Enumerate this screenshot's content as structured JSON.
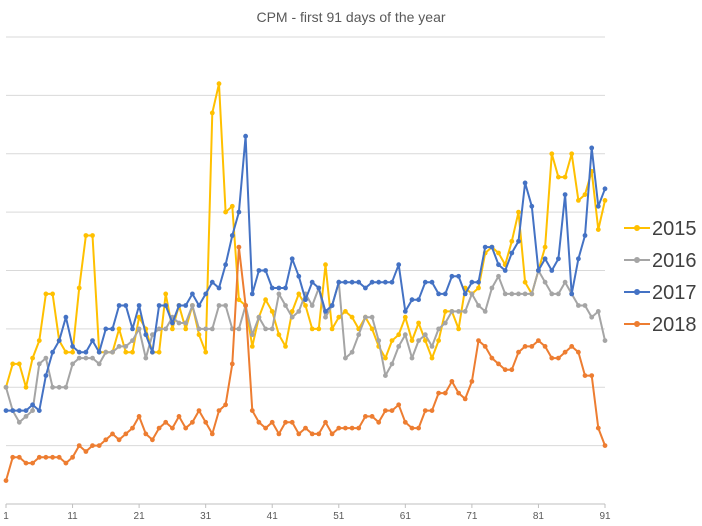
{
  "chart_data": {
    "type": "line",
    "title": "CPM - first 91 days of the year",
    "xlabel": "",
    "ylabel": "",
    "xlim": [
      1,
      91
    ],
    "ylim": [
      0,
      8
    ],
    "y_tick_labels_shown": false,
    "grid": "horizontal",
    "legend_position": "right",
    "x_ticks": [
      1,
      11,
      21,
      31,
      41,
      51,
      61,
      71,
      81,
      91
    ],
    "series": [
      {
        "name": "2015",
        "color": "#FFC000",
        "x": [
          1,
          2,
          3,
          4,
          5,
          6,
          7,
          8,
          9,
          10,
          11,
          12,
          13,
          14,
          15,
          16,
          17,
          18,
          19,
          20,
          21,
          22,
          23,
          24,
          25,
          26,
          27,
          28,
          29,
          30,
          31,
          32,
          33,
          34,
          35,
          36,
          37,
          38,
          39,
          40,
          41,
          42,
          43,
          44,
          45,
          46,
          47,
          48,
          49,
          50,
          51,
          52,
          53,
          54,
          55,
          56,
          57,
          58,
          59,
          60,
          61,
          62,
          63,
          64,
          65,
          66,
          67,
          68,
          69,
          70,
          71,
          72,
          73,
          74,
          75,
          76,
          77,
          78,
          79,
          80,
          81,
          82,
          83,
          84,
          85,
          86,
          87,
          88,
          89,
          90,
          91
        ],
        "values": [
          2.0,
          2.4,
          2.4,
          2.0,
          2.5,
          2.8,
          3.6,
          3.6,
          2.8,
          2.6,
          2.6,
          3.7,
          4.6,
          4.6,
          2.6,
          2.6,
          2.6,
          3.0,
          2.6,
          2.6,
          3.2,
          3.0,
          2.6,
          2.6,
          3.6,
          3.0,
          3.4,
          3.0,
          3.4,
          2.9,
          2.6,
          6.7,
          7.2,
          5.0,
          5.1,
          3.5,
          3.4,
          2.7,
          3.2,
          3.5,
          3.3,
          2.9,
          2.7,
          3.3,
          3.6,
          3.4,
          3.0,
          3.0,
          4.1,
          3.0,
          3.2,
          3.3,
          3.2,
          3.0,
          3.2,
          3.0,
          2.7,
          2.5,
          2.8,
          2.9,
          3.2,
          2.8,
          3.1,
          2.8,
          2.5,
          2.8,
          3.3,
          3.3,
          3.0,
          3.7,
          3.6,
          3.7,
          4.3,
          4.4,
          4.3,
          4.1,
          4.5,
          5.0,
          3.8,
          3.6,
          4.0,
          4.4,
          6.0,
          5.6,
          5.6,
          6.0,
          5.2,
          5.3,
          5.7,
          4.7,
          5.2
        ],
        "_note": "values in arbitrary CPM units read against gridlines"
      },
      {
        "name": "2016",
        "color": "#A5A5A5",
        "x": [
          1,
          2,
          3,
          4,
          5,
          6,
          7,
          8,
          9,
          10,
          11,
          12,
          13,
          14,
          15,
          16,
          17,
          18,
          19,
          20,
          21,
          22,
          23,
          24,
          25,
          26,
          27,
          28,
          29,
          30,
          31,
          32,
          33,
          34,
          35,
          36,
          37,
          38,
          39,
          40,
          41,
          42,
          43,
          44,
          45,
          46,
          47,
          48,
          49,
          50,
          51,
          52,
          53,
          54,
          55,
          56,
          57,
          58,
          59,
          60,
          61,
          62,
          63,
          64,
          65,
          66,
          67,
          68,
          69,
          70,
          71,
          72,
          73,
          74,
          75,
          76,
          77,
          78,
          79,
          80,
          81,
          82,
          83,
          84,
          85,
          86,
          87,
          88,
          89,
          90,
          91
        ],
        "values": [
          2.0,
          1.6,
          1.4,
          1.5,
          1.6,
          2.4,
          2.5,
          2.0,
          2.0,
          2.0,
          2.4,
          2.5,
          2.5,
          2.5,
          2.4,
          2.6,
          2.6,
          2.7,
          2.7,
          2.8,
          3.0,
          2.5,
          2.9,
          3.0,
          3.0,
          3.2,
          3.1,
          3.1,
          3.4,
          3.0,
          3.0,
          3.0,
          3.4,
          3.4,
          3.0,
          3.0,
          3.4,
          2.9,
          3.2,
          3.0,
          3.0,
          3.6,
          3.4,
          3.2,
          3.3,
          3.6,
          3.4,
          3.7,
          3.2,
          3.4,
          3.8,
          2.5,
          2.6,
          2.9,
          3.2,
          3.2,
          2.8,
          2.2,
          2.4,
          2.7,
          2.9,
          2.5,
          2.8,
          2.9,
          2.7,
          3.0,
          3.1,
          3.3,
          3.3,
          3.3,
          3.6,
          3.4,
          3.3,
          3.7,
          3.9,
          3.6,
          3.6,
          3.6,
          3.6,
          3.6,
          4.0,
          3.8,
          3.6,
          3.6,
          3.8,
          3.6,
          3.4,
          3.4,
          3.2,
          3.3,
          2.8
        ],
        "_note": "values in arbitrary CPM units read against gridlines"
      },
      {
        "name": "2017",
        "color": "#4472C4",
        "x": [
          1,
          2,
          3,
          4,
          5,
          6,
          7,
          8,
          9,
          10,
          11,
          12,
          13,
          14,
          15,
          16,
          17,
          18,
          19,
          20,
          21,
          22,
          23,
          24,
          25,
          26,
          27,
          28,
          29,
          30,
          31,
          32,
          33,
          34,
          35,
          36,
          37,
          38,
          39,
          40,
          41,
          42,
          43,
          44,
          45,
          46,
          47,
          48,
          49,
          50,
          51,
          52,
          53,
          54,
          55,
          56,
          57,
          58,
          59,
          60,
          61,
          62,
          63,
          64,
          65,
          66,
          67,
          68,
          69,
          70,
          71,
          72,
          73,
          74,
          75,
          76,
          77,
          78,
          79,
          80,
          81,
          82,
          83,
          84,
          85,
          86,
          87,
          88,
          89,
          90,
          91
        ],
        "values": [
          1.6,
          1.6,
          1.6,
          1.6,
          1.7,
          1.6,
          2.2,
          2.6,
          2.8,
          3.2,
          2.7,
          2.6,
          2.6,
          2.8,
          2.6,
          3.0,
          3.0,
          3.4,
          3.4,
          3.0,
          3.4,
          2.9,
          2.6,
          3.4,
          3.4,
          3.1,
          3.4,
          3.4,
          3.6,
          3.4,
          3.6,
          3.8,
          3.7,
          4.1,
          4.6,
          5.0,
          6.3,
          3.6,
          4.0,
          4.0,
          3.7,
          3.7,
          3.7,
          4.2,
          3.9,
          3.5,
          3.8,
          3.7,
          3.3,
          3.4,
          3.8,
          3.8,
          3.8,
          3.8,
          3.7,
          3.8,
          3.8,
          3.8,
          3.8,
          4.1,
          3.3,
          3.5,
          3.5,
          3.8,
          3.8,
          3.6,
          3.6,
          3.9,
          3.9,
          3.6,
          3.8,
          3.8,
          4.4,
          4.4,
          4.1,
          4.0,
          4.3,
          4.5,
          5.5,
          5.1,
          4.0,
          4.2,
          4.0,
          4.2,
          5.3,
          3.6,
          4.2,
          4.6,
          6.1,
          5.1,
          5.4
        ],
        "_note": "values in arbitrary CPM units read against gridlines"
      },
      {
        "name": "2018",
        "color": "#ED7D31",
        "x": [
          1,
          2,
          3,
          4,
          5,
          6,
          7,
          8,
          9,
          10,
          11,
          12,
          13,
          14,
          15,
          16,
          17,
          18,
          19,
          20,
          21,
          22,
          23,
          24,
          25,
          26,
          27,
          28,
          29,
          30,
          31,
          32,
          33,
          34,
          35,
          36,
          37,
          38,
          39,
          40,
          41,
          42,
          43,
          44,
          45,
          46,
          47,
          48,
          49,
          50,
          51,
          52,
          53,
          54,
          55,
          56,
          57,
          58,
          59,
          60,
          61,
          62,
          63,
          64,
          65,
          66,
          67,
          68,
          69,
          70,
          71,
          72,
          73,
          74,
          75,
          76,
          77,
          78,
          79,
          80,
          81,
          82,
          83,
          84,
          85,
          86,
          87,
          88,
          89,
          90,
          91
        ],
        "values": [
          0.4,
          0.8,
          0.8,
          0.7,
          0.7,
          0.8,
          0.8,
          0.8,
          0.8,
          0.7,
          0.8,
          1.0,
          0.9,
          1.0,
          1.0,
          1.1,
          1.2,
          1.1,
          1.2,
          1.3,
          1.5,
          1.2,
          1.1,
          1.3,
          1.4,
          1.3,
          1.5,
          1.3,
          1.4,
          1.6,
          1.4,
          1.2,
          1.6,
          1.7,
          2.4,
          4.4,
          3.4,
          1.6,
          1.4,
          1.3,
          1.4,
          1.2,
          1.4,
          1.4,
          1.2,
          1.3,
          1.2,
          1.2,
          1.4,
          1.2,
          1.3,
          1.3,
          1.3,
          1.3,
          1.5,
          1.5,
          1.4,
          1.6,
          1.6,
          1.7,
          1.4,
          1.3,
          1.3,
          1.6,
          1.6,
          1.9,
          1.9,
          2.1,
          1.9,
          1.8,
          2.1,
          2.8,
          2.7,
          2.5,
          2.4,
          2.3,
          2.3,
          2.6,
          2.7,
          2.7,
          2.8,
          2.7,
          2.5,
          2.5,
          2.6,
          2.7,
          2.6,
          2.2,
          2.2,
          1.3,
          1.0
        ],
        "_note": "values in arbitrary CPM units read against gridlines"
      }
    ]
  }
}
